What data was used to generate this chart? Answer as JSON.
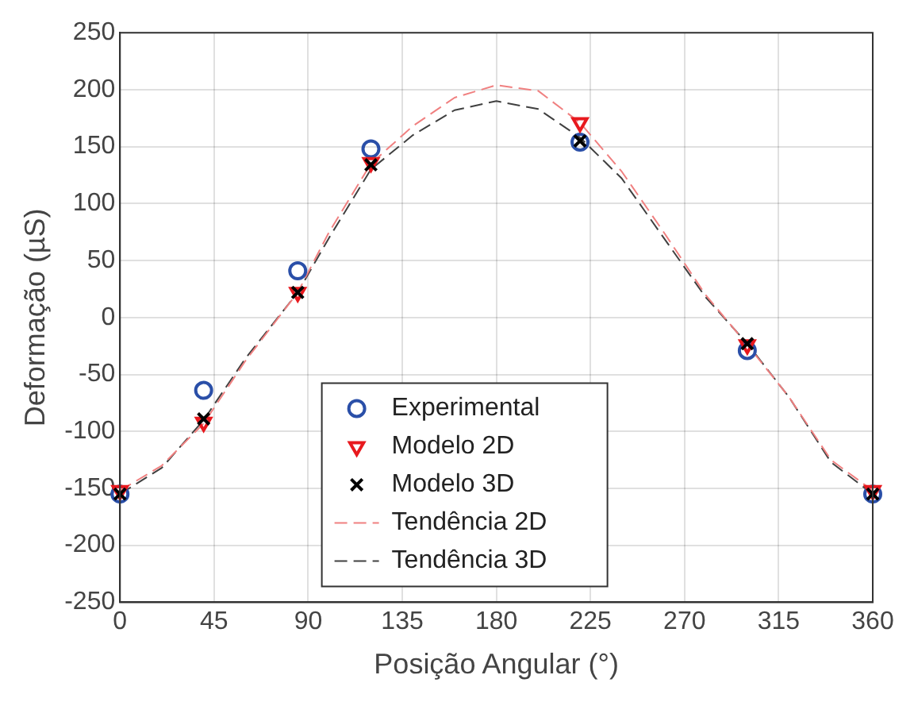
{
  "chart_data": {
    "type": "scatter",
    "xlabel": "Posição Angular (°)",
    "ylabel": "Deformação (µS)",
    "xlim": [
      0,
      360
    ],
    "xticks": [
      0,
      45,
      90,
      135,
      180,
      225,
      270,
      315,
      360
    ],
    "ylim": [
      -250,
      250
    ],
    "yticks": [
      -250,
      -200,
      -150,
      -100,
      -50,
      0,
      50,
      100,
      150,
      200,
      250
    ],
    "grid": true,
    "legend": "bottom",
    "series": [
      {
        "name": "Experimental",
        "type": "scatter",
        "marker": "circle",
        "color": "#2a4fa8",
        "x": [
          0,
          40,
          85,
          120,
          220,
          300,
          360
        ],
        "values": [
          -155,
          -64,
          41,
          148,
          154,
          -29,
          -155
        ]
      },
      {
        "name": "Modelo 2D",
        "type": "scatter",
        "marker": "triangle",
        "color": "#e8191e",
        "x": [
          0,
          40,
          85,
          120,
          220,
          300,
          360
        ],
        "values": [
          -152,
          -92,
          22,
          136,
          171,
          -24,
          -152
        ]
      },
      {
        "name": "Modelo 3D",
        "type": "scatter",
        "marker": "cross",
        "color": "#000000",
        "x": [
          0,
          40,
          85,
          120,
          220,
          300,
          360
        ],
        "values": [
          -155,
          -89,
          22,
          134,
          155,
          -23,
          -155
        ]
      },
      {
        "name": "Tendência 2D",
        "type": "line",
        "line_style": "dashed",
        "color": "#f08080",
        "x": [
          0,
          20,
          40,
          60,
          85,
          100,
          120,
          140,
          160,
          180,
          200,
          220,
          240,
          260,
          280,
          300,
          320,
          340,
          360
        ],
        "values": [
          -152,
          -130,
          -93,
          -38,
          22,
          75,
          135,
          168,
          193,
          204,
          199,
          171,
          128,
          75,
          20,
          -24,
          -70,
          -125,
          -152
        ]
      },
      {
        "name": "Tendência 3D",
        "type": "line",
        "line_style": "dashed",
        "color": "#404040",
        "x": [
          0,
          20,
          40,
          60,
          85,
          100,
          120,
          140,
          160,
          180,
          200,
          220,
          240,
          260,
          280,
          300,
          320,
          340,
          360
        ],
        "values": [
          -155,
          -132,
          -90,
          -36,
          22,
          70,
          130,
          160,
          182,
          190,
          183,
          158,
          122,
          70,
          18,
          -23,
          -70,
          -127,
          -155
        ]
      }
    ]
  }
}
